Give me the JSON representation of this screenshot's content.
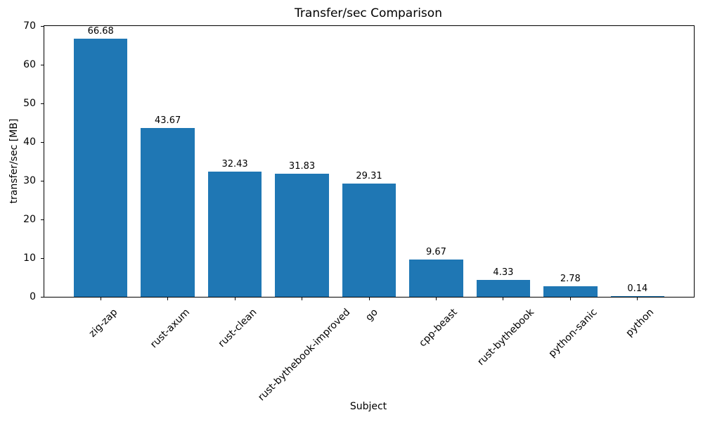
{
  "chart_data": {
    "type": "bar",
    "title": "Transfer/sec Comparison",
    "xlabel": "Subject",
    "ylabel": "transfer/sec [MB]",
    "categories": [
      "zig-zap",
      "rust-axum",
      "rust-clean",
      "rust-bythebook-improved",
      "go",
      "cpp-beast",
      "rust-bythebook",
      "python-sanic",
      "python"
    ],
    "values": [
      66.68,
      43.67,
      32.43,
      31.83,
      29.31,
      9.67,
      4.33,
      2.78,
      0.14
    ],
    "value_labels": [
      "66.68",
      "43.67",
      "32.43",
      "31.83",
      "29.31",
      "9.67",
      "4.33",
      "2.78",
      "0.14"
    ],
    "yticks": [
      0,
      10,
      20,
      30,
      40,
      50,
      60,
      70
    ],
    "ylim": [
      0,
      70
    ],
    "grid": false,
    "legend_position": "none",
    "xtick_rotation_deg": 45,
    "bar_color": "#1f77b4",
    "background_color": "#ffffff",
    "text_color": "#000000",
    "spine_color": "#000000"
  }
}
